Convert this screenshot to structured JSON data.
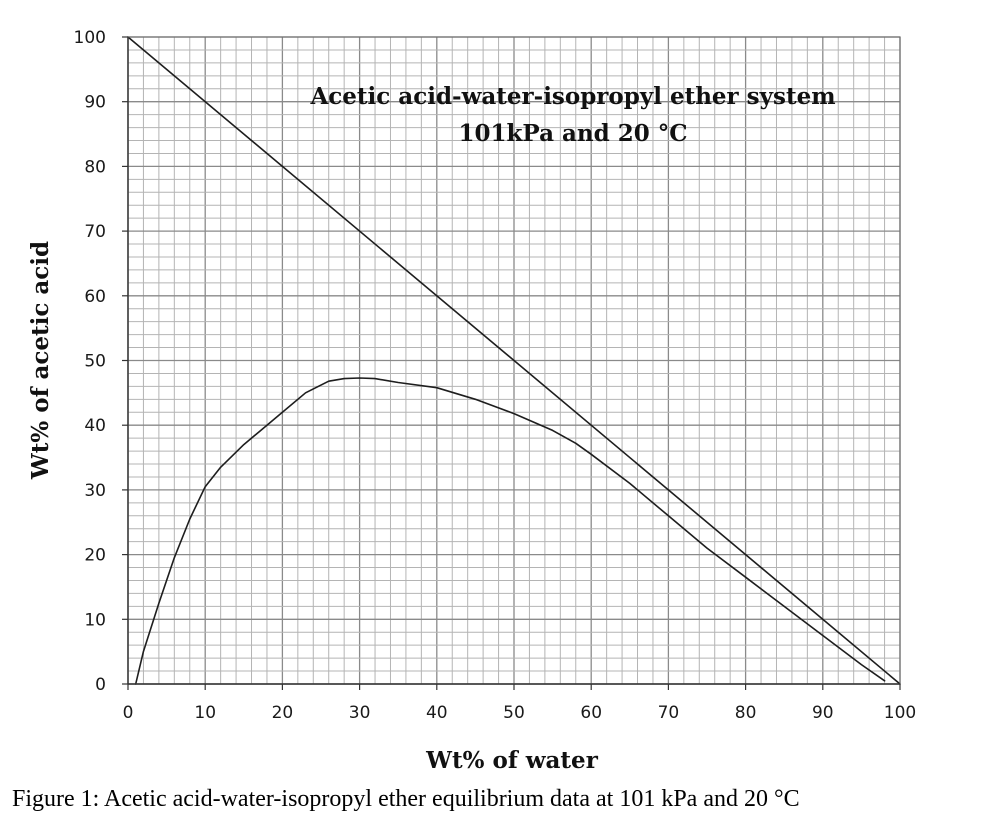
{
  "caption": "Figure 1: Acetic acid-water-isopropyl ether equilibrium data at 101 kPa and 20 °C",
  "chart_data": {
    "type": "line",
    "title": [
      "Acetic acid-water-isopropyl ether system",
      "101kPa and 20 °C"
    ],
    "xlabel": "Wt% of water",
    "ylabel": "Wt% of acetic acid",
    "xlim": [
      0,
      100
    ],
    "ylim": [
      0,
      100
    ],
    "xticks": [
      0,
      10,
      20,
      30,
      40,
      50,
      60,
      70,
      80,
      90,
      100
    ],
    "yticks": [
      0,
      10,
      20,
      30,
      40,
      50,
      60,
      70,
      80,
      90,
      100
    ],
    "grid": true,
    "minor_grid_step": 2,
    "legend": "none",
    "series": [
      {
        "x": [
          0,
          100
        ],
        "y": [
          100,
          0
        ]
      },
      {
        "x": [
          1.0,
          2.0,
          4.0,
          6.0,
          8.0,
          10.0,
          12.0,
          15.0,
          17.0,
          20.0,
          23.0,
          26.0,
          28.0,
          30.0,
          32.0,
          35.0,
          40.0,
          45.0,
          50.0,
          55.0,
          58.0,
          60.0,
          65.0,
          70.0,
          75.0,
          80.0,
          85.0,
          90.0,
          95.0,
          98.0
        ],
        "y": [
          0,
          5,
          12.5,
          19.5,
          25.5,
          30.5,
          33.5,
          37.0,
          39.0,
          42.0,
          45.0,
          46.8,
          47.2,
          47.3,
          47.2,
          46.6,
          45.8,
          44.0,
          41.8,
          39.2,
          37.2,
          35.5,
          31.0,
          26.0,
          21.0,
          16.5,
          12.0,
          7.5,
          3.0,
          0.5
        ]
      }
    ]
  }
}
